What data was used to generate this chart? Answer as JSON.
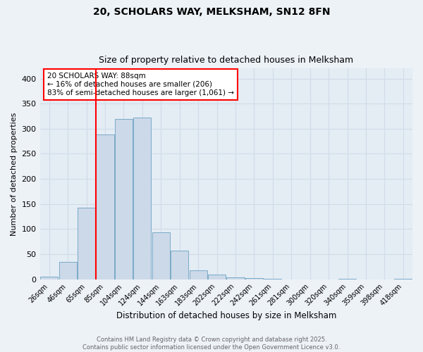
{
  "title1": "20, SCHOLARS WAY, MELKSHAM, SN12 8FN",
  "title2": "Size of property relative to detached houses in Melksham",
  "xlabel": "Distribution of detached houses by size in Melksham",
  "ylabel": "Number of detached properties",
  "categories": [
    "26sqm",
    "46sqm",
    "65sqm",
    "85sqm",
    "104sqm",
    "124sqm",
    "144sqm",
    "163sqm",
    "183sqm",
    "202sqm",
    "222sqm",
    "242sqm",
    "261sqm",
    "281sqm",
    "300sqm",
    "320sqm",
    "340sqm",
    "359sqm",
    "398sqm",
    "418sqm"
  ],
  "values": [
    5,
    34,
    143,
    289,
    320,
    322,
    93,
    57,
    18,
    9,
    3,
    2,
    1,
    0,
    0,
    0,
    1,
    0,
    0,
    1
  ],
  "bar_color": "#ccd9e8",
  "bar_edge_color": "#7aaac8",
  "red_line_label1": "20 SCHOLARS WAY: 88sqm",
  "red_line_label2": "← 16% of detached houses are smaller (206)",
  "red_line_label3": "83% of semi-detached houses are larger (1,061) →",
  "ylim": [
    0,
    420
  ],
  "yticks": [
    0,
    50,
    100,
    150,
    200,
    250,
    300,
    350,
    400
  ],
  "footer1": "Contains HM Land Registry data © Crown copyright and database right 2025.",
  "footer2": "Contains public sector information licensed under the Open Government Licence v3.0.",
  "bg_color": "#edf2f7",
  "plot_bg_color": "#e4ecf4",
  "grid_color": "#d0dce8"
}
